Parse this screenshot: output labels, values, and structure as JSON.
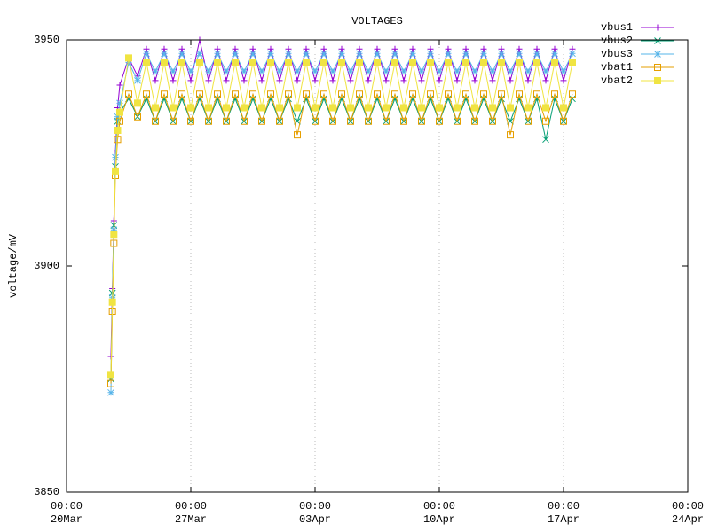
{
  "chart_data": {
    "type": "line",
    "title": "VOLTAGES",
    "y_label": "voltage/mV",
    "xlim": [
      "20Mar 00:00",
      "24Apr 00:00"
    ],
    "xticks": [
      {
        "value": "20Mar 00:00",
        "label": [
          "00:00",
          "20Mar"
        ]
      },
      {
        "value": "27Mar 00:00",
        "label": [
          "00:00",
          "27Mar"
        ]
      },
      {
        "value": "03Apr 00:00",
        "label": [
          "00:00",
          "03Apr"
        ]
      },
      {
        "value": "10Apr 00:00",
        "label": [
          "00:00",
          "10Apr"
        ]
      },
      {
        "value": "17Apr 00:00",
        "label": [
          "00:00",
          "17Apr"
        ]
      },
      {
        "value": "24Apr 00:00",
        "label": [
          "00:00",
          "24Apr"
        ]
      }
    ],
    "ylim": [
      3850,
      3950
    ],
    "yticks": [
      3850,
      3900,
      3950
    ],
    "grid": "x",
    "legend": "outside-top-right",
    "x": [
      "22Mar 12:00",
      "22Mar 14:00",
      "22Mar 16:00",
      "22Mar 18:00",
      "22Mar 21:00",
      "23Mar 00:00",
      "23Mar 12:00",
      "24Mar 00:00",
      "24Mar 12:00",
      "25Mar 00:00",
      "25Mar 12:00",
      "26Mar 00:00",
      "26Mar 12:00",
      "27Mar 00:00",
      "27Mar 12:00",
      "28Mar 00:00",
      "28Mar 12:00",
      "29Mar 00:00",
      "29Mar 12:00",
      "30Mar 00:00",
      "30Mar 12:00",
      "31Mar 00:00",
      "31Mar 12:00",
      "01Apr 00:00",
      "01Apr 12:00",
      "02Apr 00:00",
      "02Apr 12:00",
      "03Apr 00:00",
      "03Apr 12:00",
      "04Apr 00:00",
      "04Apr 12:00",
      "05Apr 00:00",
      "05Apr 12:00",
      "06Apr 00:00",
      "06Apr 12:00",
      "07Apr 00:00",
      "07Apr 12:00",
      "08Apr 00:00",
      "08Apr 12:00",
      "09Apr 00:00",
      "09Apr 12:00",
      "10Apr 00:00",
      "10Apr 12:00",
      "11Apr 00:00",
      "11Apr 12:00",
      "12Apr 00:00",
      "12Apr 12:00",
      "13Apr 00:00",
      "13Apr 12:00",
      "14Apr 00:00",
      "14Apr 12:00",
      "15Apr 00:00",
      "15Apr 12:00",
      "16Apr 00:00",
      "16Apr 12:00",
      "17Apr 00:00",
      "17Apr 12:00"
    ],
    "series": [
      {
        "name": "vbus1",
        "color": "#9400d3",
        "marker": "plus",
        "values": [
          3880,
          3895,
          3910,
          3925,
          3935,
          3940,
          3946,
          3942,
          3948,
          3941,
          3948,
          3941,
          3948,
          3941,
          3950,
          3941,
          3948,
          3941,
          3948,
          3941,
          3948,
          3941,
          3948,
          3941,
          3948,
          3941,
          3948,
          3941,
          3948,
          3941,
          3948,
          3941,
          3948,
          3941,
          3948,
          3941,
          3948,
          3941,
          3948,
          3941,
          3948,
          3941,
          3948,
          3941,
          3948,
          3941,
          3948,
          3941,
          3948,
          3941,
          3948,
          3941,
          3948,
          3941,
          3948,
          3941,
          3948
        ]
      },
      {
        "name": "vbus2",
        "color": "#009e73",
        "marker": "cross",
        "values": [
          3875,
          3894,
          3909,
          3922,
          3932,
          3934,
          3937,
          3933,
          3937,
          3932,
          3937,
          3932,
          3937,
          3932,
          3937,
          3932,
          3937,
          3932,
          3937,
          3932,
          3937,
          3932,
          3937,
          3932,
          3937,
          3932,
          3937,
          3932,
          3937,
          3932,
          3937,
          3932,
          3937,
          3932,
          3937,
          3932,
          3937,
          3932,
          3937,
          3932,
          3937,
          3932,
          3937,
          3932,
          3937,
          3932,
          3937,
          3932,
          3937,
          3932,
          3937,
          3932,
          3937,
          3928,
          3937,
          3932,
          3937
        ]
      },
      {
        "name": "vbus3",
        "color": "#56b4e9",
        "marker": "star",
        "values": [
          3872,
          3893,
          3908,
          3924,
          3933,
          3936,
          3945,
          3941,
          3947,
          3943,
          3947,
          3943,
          3947,
          3943,
          3947,
          3943,
          3947,
          3943,
          3947,
          3943,
          3947,
          3943,
          3947,
          3943,
          3947,
          3943,
          3947,
          3943,
          3947,
          3943,
          3947,
          3943,
          3947,
          3943,
          3947,
          3943,
          3947,
          3943,
          3947,
          3943,
          3947,
          3943,
          3947,
          3943,
          3947,
          3943,
          3947,
          3943,
          3947,
          3943,
          3947,
          3943,
          3947,
          3943,
          3947,
          3943,
          3947
        ]
      },
      {
        "name": "vbat1",
        "color": "#e69f00",
        "marker": "square",
        "values": [
          3874,
          3890,
          3905,
          3920,
          3928,
          3932,
          3938,
          3933,
          3938,
          3932,
          3938,
          3932,
          3938,
          3932,
          3938,
          3932,
          3938,
          3932,
          3938,
          3932,
          3938,
          3932,
          3938,
          3932,
          3938,
          3929,
          3938,
          3932,
          3938,
          3932,
          3938,
          3932,
          3938,
          3932,
          3938,
          3932,
          3938,
          3932,
          3938,
          3932,
          3938,
          3932,
          3938,
          3932,
          3938,
          3932,
          3938,
          3932,
          3938,
          3929,
          3938,
          3932,
          3938,
          3932,
          3938,
          3932,
          3938
        ]
      },
      {
        "name": "vbat2",
        "color": "#f0e442",
        "marker": "filled-square",
        "values": [
          3876,
          3892,
          3907,
          3921,
          3930,
          3934,
          3946,
          3936,
          3945,
          3935,
          3945,
          3935,
          3945,
          3935,
          3945,
          3935,
          3945,
          3935,
          3945,
          3935,
          3945,
          3935,
          3945,
          3935,
          3945,
          3935,
          3945,
          3935,
          3945,
          3935,
          3945,
          3935,
          3945,
          3935,
          3945,
          3935,
          3945,
          3935,
          3945,
          3935,
          3945,
          3935,
          3945,
          3935,
          3945,
          3935,
          3945,
          3935,
          3945,
          3935,
          3945,
          3935,
          3945,
          3935,
          3945,
          3935,
          3945
        ]
      }
    ]
  }
}
